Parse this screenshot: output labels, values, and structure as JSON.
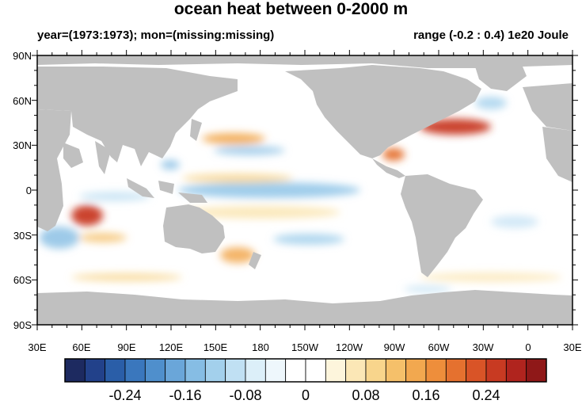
{
  "map": {
    "title": "ocean heat between 0-2000 m",
    "subtitle_left": "year=(1973:1973); mon=(missing:missing)",
    "subtitle_right": "range (-0.2 : 0.4) 1e20 Joule",
    "lon_labels": [
      "30E",
      "60E",
      "90E",
      "120E",
      "150E",
      "180",
      "150W",
      "120W",
      "90W",
      "60W",
      "30W",
      "0",
      "30E"
    ],
    "lat_labels": [
      "90N",
      "60N",
      "30N",
      "0",
      "30S",
      "60S",
      "90S"
    ],
    "colors": {
      "land": "#c0c0c0",
      "ocean_base": "#ffffff"
    }
  },
  "colorbar": {
    "colors": [
      "#1d2a60",
      "#22418a",
      "#2a5ea8",
      "#3a77bd",
      "#4f8fcc",
      "#6aa6d9",
      "#86bde4",
      "#a3d0ec",
      "#c0e0f3",
      "#dceff9",
      "#eef7fc",
      "#ffffff",
      "#ffffff",
      "#fdf5dc",
      "#fbe7b6",
      "#f8d58c",
      "#f5c06a",
      "#f2a84f",
      "#ee8e3b",
      "#e5712f",
      "#d95427",
      "#c83a22",
      "#b0241e",
      "#8f1818"
    ],
    "labels": [
      "-0.24",
      "-0.16",
      "-0.08",
      "0",
      "0.08",
      "0.16",
      "0.24"
    ]
  }
}
